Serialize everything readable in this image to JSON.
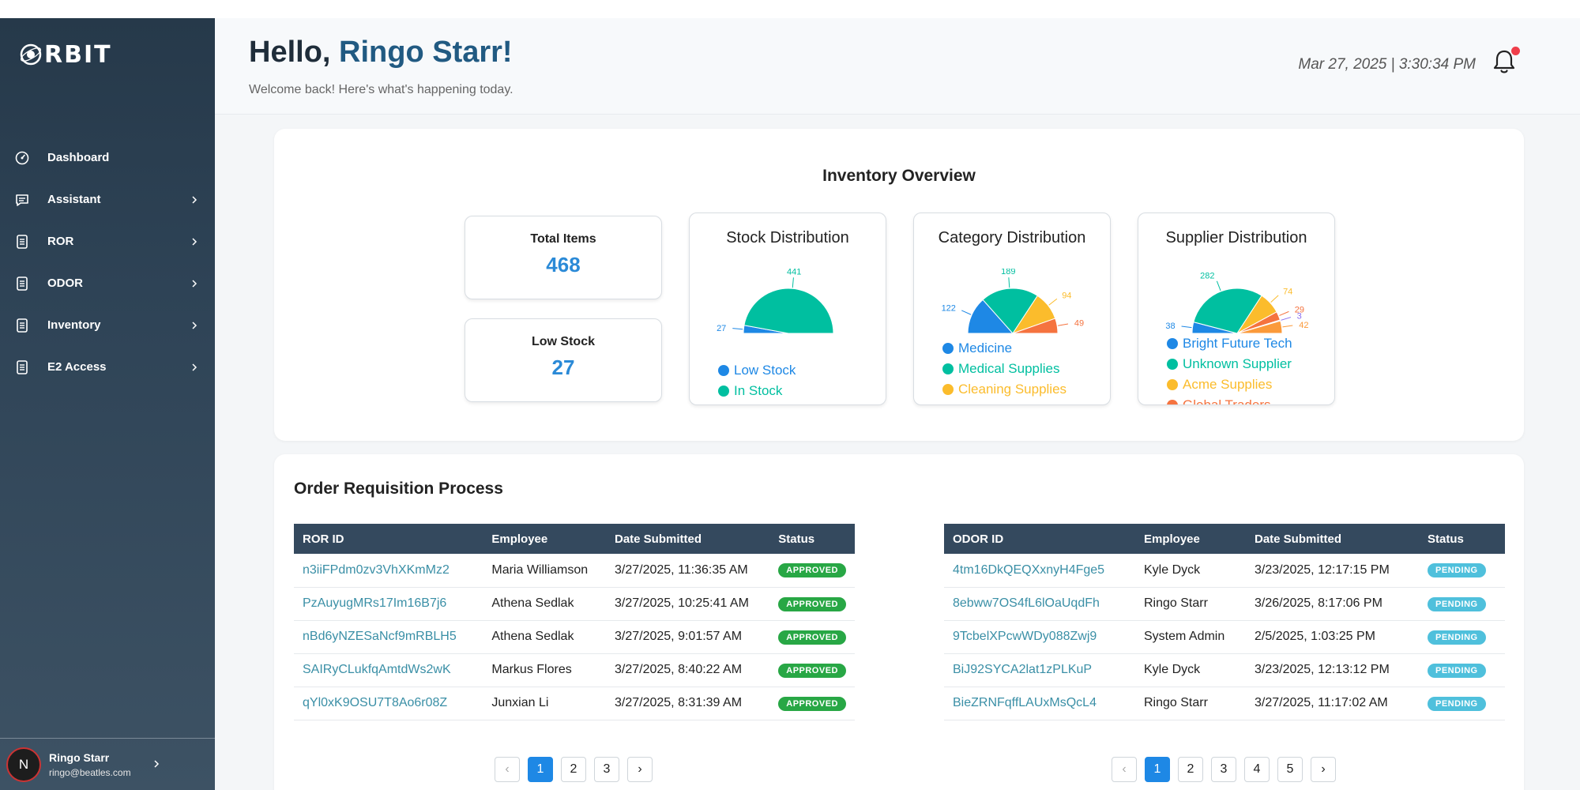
{
  "sidebar": {
    "logo_text": "RBIT",
    "items": [
      {
        "label": "Dashboard",
        "icon": "dashboard-icon",
        "has_chevron": false
      },
      {
        "label": "Assistant",
        "icon": "chat-icon",
        "has_chevron": true
      },
      {
        "label": "ROR",
        "icon": "document-icon",
        "has_chevron": true
      },
      {
        "label": "ODOR",
        "icon": "document-icon",
        "has_chevron": true
      },
      {
        "label": "Inventory",
        "icon": "document-icon",
        "has_chevron": true
      },
      {
        "label": "E2 Access",
        "icon": "document-icon",
        "has_chevron": true
      }
    ],
    "user": {
      "initial": "N",
      "name": "Ringo Starr",
      "email": "ringo@beatles.com"
    }
  },
  "header": {
    "greeting": "Hello, ",
    "user_name": "Ringo Starr!",
    "subtitle": "Welcome back! Here's what's happening today.",
    "datetime": "Mar 27, 2025 | 3:30:34 PM",
    "notification_dot_color": "#ef3e4a"
  },
  "inventory": {
    "title": "Inventory Overview",
    "total_items_label": "Total Items",
    "total_items_value": "468",
    "low_stock_label": "Low Stock",
    "low_stock_value": "27",
    "charts": {
      "stock": {
        "title": "Stock Distribution",
        "slices": [
          {
            "label": "Low Stock",
            "value": 27,
            "color": "#1e88e5"
          },
          {
            "label": "In Stock",
            "value": 441,
            "color": "#00bfa0"
          }
        ]
      },
      "category": {
        "title": "Category Distribution",
        "slices": [
          {
            "label": "Medicine",
            "value": 122,
            "color": "#1e88e5"
          },
          {
            "label": "Medical Supplies",
            "value": 189,
            "color": "#00bfa0"
          },
          {
            "label": "Cleaning Supplies",
            "value": 94,
            "color": "#fbbc2c"
          },
          {
            "label": "",
            "value": 49,
            "color": "#f5733f"
          }
        ]
      },
      "supplier": {
        "title": "Supplier Distribution",
        "slices": [
          {
            "label": "Bright Future Tech",
            "value": 38,
            "color": "#1e88e5"
          },
          {
            "label": "Unknown Supplier",
            "value": 282,
            "color": "#00bfa0"
          },
          {
            "label": "Acme Supplies",
            "value": 74,
            "color": "#fbbc2c"
          },
          {
            "label": "Global Traders",
            "value": 29,
            "color": "#f5733f"
          },
          {
            "label": "",
            "value": 3,
            "color": "#8a6cf0"
          },
          {
            "label": "",
            "value": 42,
            "color": "#fb9a3a"
          }
        ]
      }
    }
  },
  "orp": {
    "title": "Order Requisition Process",
    "ror": {
      "headers": [
        "ROR ID",
        "Employee",
        "Date Submitted",
        "Status"
      ],
      "rows": [
        [
          "n3iiFPdm0zv3VhXKmMz2",
          "Maria Williamson",
          "3/27/2025, 11:36:35 AM",
          "APPROVED"
        ],
        [
          "PzAuyugMRs17Im16B7j6",
          "Athena Sedlak",
          "3/27/2025, 10:25:41 AM",
          "APPROVED"
        ],
        [
          "nBd6yNZESaNcf9mRBLH5",
          "Athena Sedlak",
          "3/27/2025, 9:01:57 AM",
          "APPROVED"
        ],
        [
          "SAIRyCLukfqAmtdWs2wK",
          "Markus Flores",
          "3/27/2025, 8:40:22 AM",
          "APPROVED"
        ],
        [
          "qYl0xK9OSU7T8Ao6r08Z",
          "Junxian Li",
          "3/27/2025, 8:31:39 AM",
          "APPROVED"
        ]
      ],
      "pages": [
        "1",
        "2",
        "3"
      ],
      "prev": "‹",
      "next": "›"
    },
    "odor": {
      "headers": [
        "ODOR ID",
        "Employee",
        "Date Submitted",
        "Status"
      ],
      "rows": [
        [
          "4tm16DkQEQXxnyH4Fge5",
          "Kyle Dyck",
          "3/23/2025, 12:17:15 PM",
          "PENDING"
        ],
        [
          "8ebww7OS4fL6lOaUqdFh",
          "Ringo Starr",
          "3/26/2025, 8:17:06 PM",
          "PENDING"
        ],
        [
          "9TcbelXPcwWDy088Zwj9",
          "System Admin",
          "2/5/2025, 1:03:25 PM",
          "PENDING"
        ],
        [
          "BiJ92SYCA2lat1zPLKuP",
          "Kyle Dyck",
          "3/23/2025, 12:13:12 PM",
          "PENDING"
        ],
        [
          "BieZRNFqffLAUxMsQcL4",
          "Ringo Starr",
          "3/27/2025, 11:17:02 AM",
          "PENDING"
        ]
      ],
      "pages": [
        "1",
        "2",
        "3",
        "4",
        "5"
      ],
      "prev": "‹",
      "next": "›"
    }
  }
}
